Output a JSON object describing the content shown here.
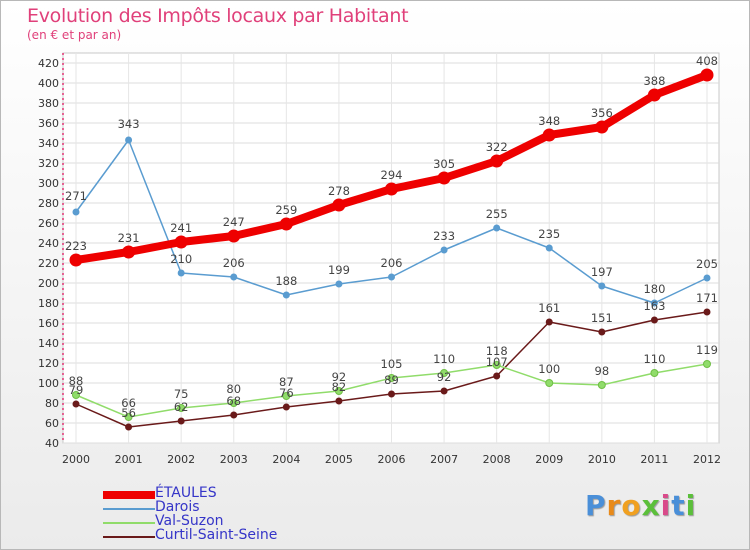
{
  "title": "Evolution des Impôts locaux par Habitant",
  "subtitle": "(en € et par an)",
  "logo": {
    "text": "Proxiti",
    "colors": [
      "#4a8fd8",
      "#e88a1a",
      "#f0a020",
      "#5bbf3a",
      "#d94a8a",
      "#4a8fd8",
      "#5bbf3a"
    ]
  },
  "chart_data": {
    "type": "line",
    "title": "Evolution des Impôts locaux par Habitant",
    "subtitle": "(en € et par an)",
    "x": [
      "2000",
      "2001",
      "2002",
      "2003",
      "2004",
      "2005",
      "2006",
      "2007",
      "2008",
      "2009",
      "2010",
      "2011",
      "2012"
    ],
    "ylim": [
      40,
      420
    ],
    "yticks": [
      40,
      60,
      80,
      100,
      120,
      140,
      160,
      180,
      200,
      220,
      240,
      260,
      280,
      300,
      320,
      340,
      360,
      380,
      400,
      420
    ],
    "grid": true,
    "legend": "bottom-left",
    "series": [
      {
        "name": "ÉTAULES",
        "color": "#ee0000",
        "values": [
          223,
          231,
          241,
          247,
          259,
          278,
          294,
          305,
          322,
          348,
          356,
          388,
          408
        ]
      },
      {
        "name": "Darois",
        "color": "#5a9cd0",
        "values": [
          271,
          343,
          210,
          206,
          188,
          199,
          206,
          233,
          255,
          235,
          197,
          180,
          205
        ]
      },
      {
        "name": "Val-Suzon",
        "color": "#90dc6a",
        "values": [
          88,
          66,
          75,
          80,
          87,
          92,
          105,
          110,
          118,
          100,
          98,
          110,
          119
        ]
      },
      {
        "name": "Curtil-Saint-Seine",
        "color": "#6a1a1a",
        "values": [
          79,
          56,
          62,
          68,
          76,
          82,
          89,
          92,
          107,
          161,
          151,
          163,
          171
        ]
      }
    ]
  }
}
